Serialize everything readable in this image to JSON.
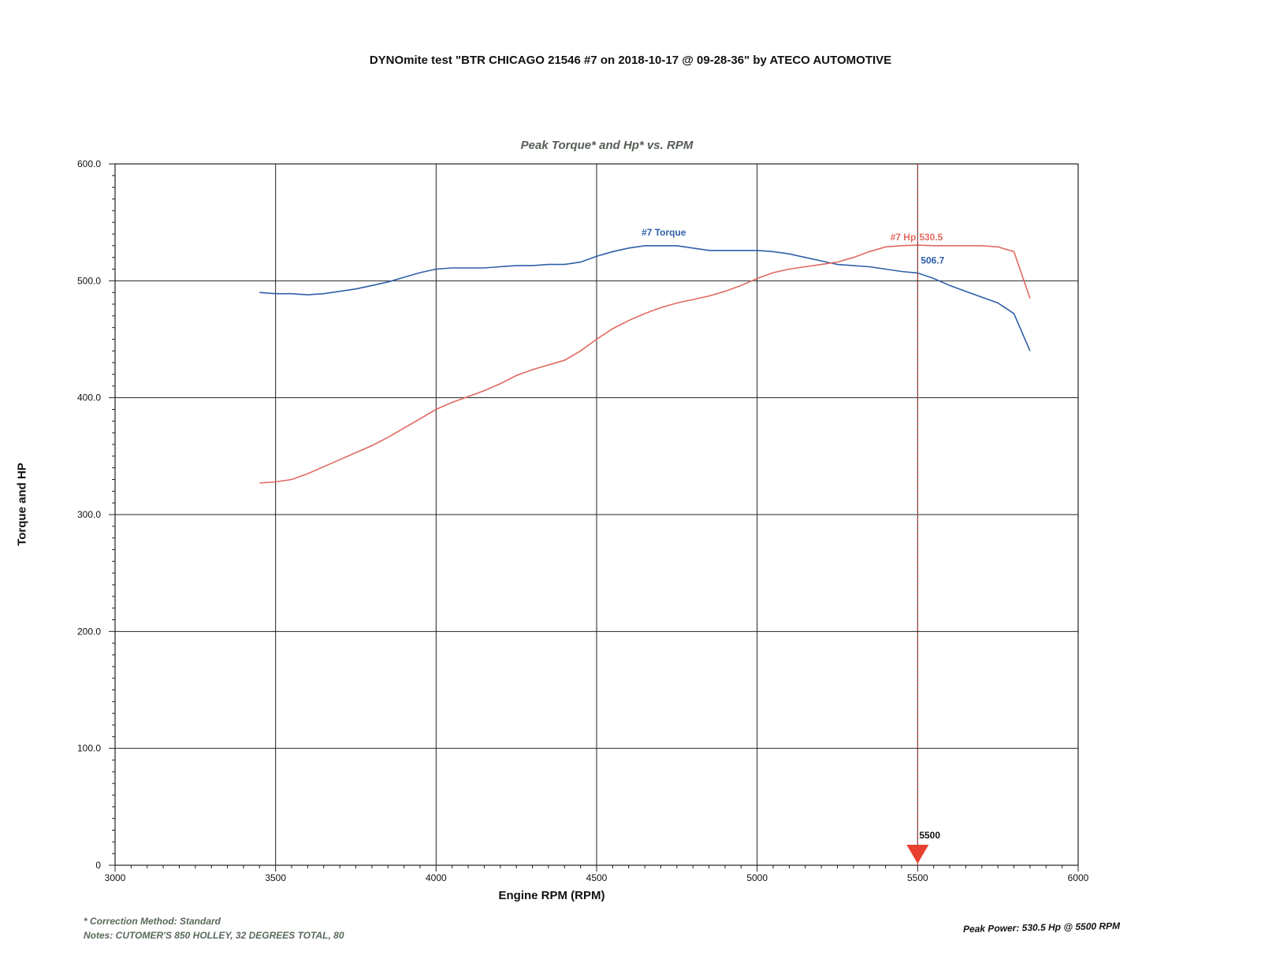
{
  "header": {
    "title": "DYNOmite test \"BTR CHICAGO 21546 #7 on 2018-10-17 @ 09-28-36\" by ATECO AUTOMOTIVE"
  },
  "footer": {
    "correction": "* Correction Method: Standard",
    "notes": "Notes: CUTOMER'S 850 HOLLEY, 32 DEGREES TOTAL, 80",
    "peak_power": "Peak Power: 530.5 Hp @ 5500 RPM"
  },
  "chart_data": {
    "type": "line",
    "title": "Peak Torque* and Hp* vs. RPM",
    "xlabel": "Engine RPM (RPM)",
    "ylabel": "Torque and HP",
    "xlim": [
      3000,
      6000
    ],
    "ylim": [
      0,
      600
    ],
    "x_ticks": [
      3000,
      3500,
      4000,
      4500,
      5000,
      5500,
      6000
    ],
    "y_ticks": [
      0,
      100,
      200,
      300,
      400,
      500,
      600
    ],
    "x_tick_labels": [
      "3000",
      "3500",
      "4000",
      "4500",
      "5000",
      "5500",
      "6000"
    ],
    "y_tick_labels": [
      "0",
      "100.0",
      "200.0",
      "300.0",
      "400.0",
      "500.0",
      "600.0"
    ],
    "grid": true,
    "series": [
      {
        "name": "#7 Torque",
        "color": "#2f5fa8",
        "x": [
          3450,
          3500,
          3550,
          3600,
          3650,
          3700,
          3750,
          3800,
          3850,
          3900,
          3950,
          4000,
          4050,
          4100,
          4150,
          4200,
          4250,
          4300,
          4350,
          4400,
          4450,
          4500,
          4550,
          4600,
          4650,
          4700,
          4750,
          4800,
          4850,
          4900,
          4950,
          5000,
          5050,
          5100,
          5150,
          5200,
          5250,
          5300,
          5350,
          5400,
          5450,
          5500,
          5550,
          5600,
          5650,
          5700,
          5750,
          5800,
          5850
        ],
        "values": [
          490,
          489,
          489,
          488,
          489,
          491,
          493,
          496,
          499,
          503,
          507,
          510,
          511,
          511,
          511,
          512,
          513,
          513,
          514,
          514,
          516,
          521,
          525,
          528,
          530,
          530,
          530,
          528,
          526,
          526,
          526,
          526,
          525,
          523,
          520,
          517,
          514,
          513,
          512,
          510,
          508,
          506.7,
          502,
          496,
          491,
          486,
          481,
          472,
          440
        ]
      },
      {
        "name": "#7 Hp",
        "color": "#e06a60",
        "x": [
          3450,
          3500,
          3550,
          3600,
          3650,
          3700,
          3750,
          3800,
          3850,
          3900,
          3950,
          4000,
          4050,
          4100,
          4150,
          4200,
          4250,
          4300,
          4350,
          4400,
          4450,
          4500,
          4550,
          4600,
          4650,
          4700,
          4750,
          4800,
          4850,
          4900,
          4950,
          5000,
          5050,
          5100,
          5150,
          5200,
          5250,
          5300,
          5350,
          5400,
          5450,
          5500,
          5550,
          5600,
          5650,
          5700,
          5750,
          5800,
          5850
        ],
        "values": [
          327,
          328,
          330,
          335,
          341,
          347,
          353,
          359,
          366,
          374,
          382,
          390,
          396,
          401,
          406,
          412,
          419,
          424,
          428,
          432,
          440,
          450,
          459,
          466,
          472,
          477,
          481,
          484,
          487,
          491,
          496,
          502,
          507,
          510,
          512,
          514,
          516,
          520,
          525,
          529,
          530,
          530.5,
          530,
          530,
          530,
          530,
          529,
          525,
          485
        ]
      }
    ],
    "annotations": [
      {
        "text": "#7 Torque",
        "series": "#7 Torque",
        "x": 4640,
        "y": 532
      },
      {
        "text": "#7 Hp",
        "series": "#7 Hp",
        "x": 5400,
        "y": 532
      },
      {
        "text": "530.5",
        "series": "#7 Hp",
        "x": 5500,
        "y": 530.5
      },
      {
        "text": "506.7",
        "series": "#7 Torque",
        "x": 5500,
        "y": 506.7
      },
      {
        "text": "5500",
        "x": 5500,
        "y": 0
      }
    ],
    "marker_rpm": 5500
  }
}
